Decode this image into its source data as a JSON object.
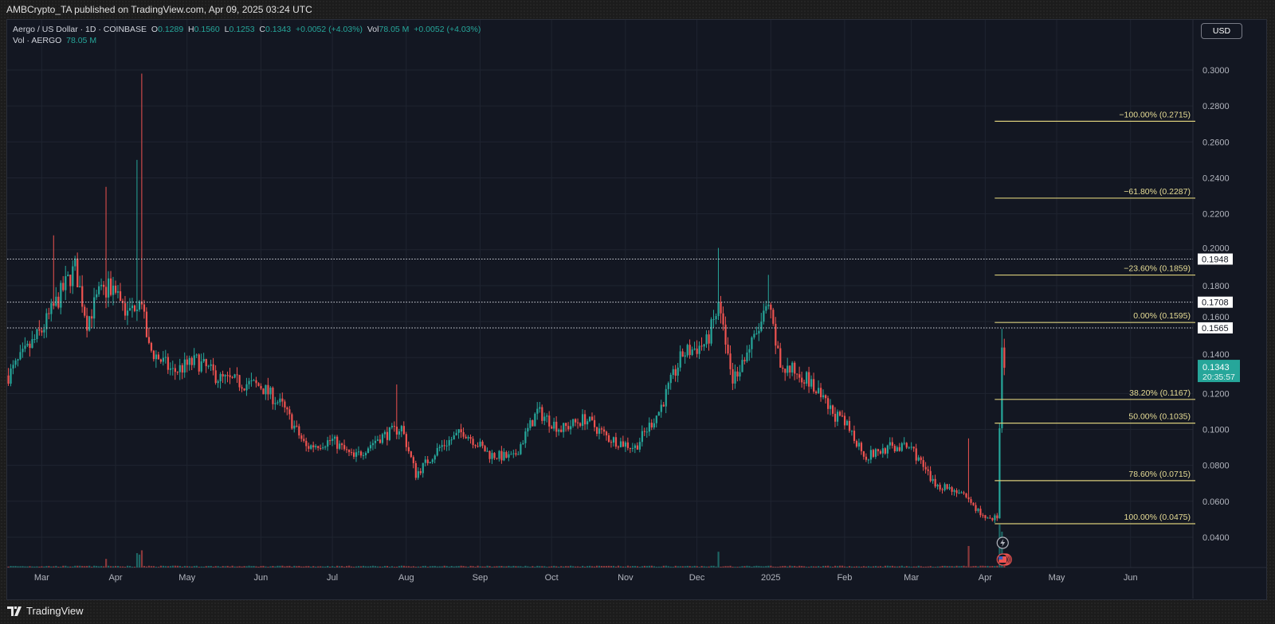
{
  "published": "AMBCrypto_TA published on TradingView.com, Apr 09, 2025 03:24 UTC",
  "legend": {
    "symbol": "Aergo / US Dollar · 1D · COINBASE",
    "o_label": "O",
    "o": "0.1289",
    "h_label": "H",
    "h": "0.1560",
    "l_label": "L",
    "l": "0.1253",
    "c_label": "C",
    "c": "0.1343",
    "change": "+0.0052 (+4.03%)",
    "vol_label": "Vol",
    "vol": "78.05 M",
    "vol_change": "+0.0052 (+4.03%)",
    "vol_series": "Vol · AERGO",
    "vol_series_value": "78.05 M"
  },
  "currency_button": "USD",
  "brand": "TradingView",
  "colors": {
    "up": "#26a69a",
    "down": "#ef5350",
    "fib": "#d8cc7a",
    "bg": "#131722",
    "grid": "#1f2430"
  },
  "chart_data": {
    "type": "candlestick",
    "symbol": "AERGO/USD",
    "interval": "1D",
    "ylim": [
      0.025,
      0.31
    ],
    "y_ticks": [
      "0.3000",
      "0.2800",
      "0.2600",
      "0.2400",
      "0.2200",
      "0.2000",
      "0.1800",
      "0.1600",
      "0.1400",
      "0.1200",
      "0.1000",
      "0.0800",
      "0.0600",
      "0.0400"
    ],
    "x_ticks": [
      {
        "label": "Mar",
        "date": "2024-03-01"
      },
      {
        "label": "Apr",
        "date": "2024-04-01"
      },
      {
        "label": "May",
        "date": "2024-05-01"
      },
      {
        "label": "Jun",
        "date": "2024-06-01"
      },
      {
        "label": "Jul",
        "date": "2024-07-01"
      },
      {
        "label": "Aug",
        "date": "2024-08-01"
      },
      {
        "label": "Sep",
        "date": "2024-09-01"
      },
      {
        "label": "Oct",
        "date": "2024-10-01"
      },
      {
        "label": "Nov",
        "date": "2024-11-01"
      },
      {
        "label": "Dec",
        "date": "2024-12-01"
      },
      {
        "label": "2025",
        "date": "2025-01-01"
      },
      {
        "label": "Feb",
        "date": "2025-02-01"
      },
      {
        "label": "Mar",
        "date": "2025-03-01"
      },
      {
        "label": "Apr",
        "date": "2025-04-01"
      },
      {
        "label": "May",
        "date": "2025-05-01"
      },
      {
        "label": "Jun",
        "date": "2025-06-01"
      }
    ],
    "close_anchors": [
      [
        "2024-02-16",
        0.13
      ],
      [
        "2024-03-01",
        0.155
      ],
      [
        "2024-03-10",
        0.178
      ],
      [
        "2024-03-15",
        0.19
      ],
      [
        "2024-03-20",
        0.16
      ],
      [
        "2024-03-25",
        0.175
      ],
      [
        "2024-04-01",
        0.18
      ],
      [
        "2024-04-06",
        0.163
      ],
      [
        "2024-04-11",
        0.175
      ],
      [
        "2024-04-15",
        0.145
      ],
      [
        "2024-04-25",
        0.132
      ],
      [
        "2024-05-05",
        0.138
      ],
      [
        "2024-05-15",
        0.128
      ],
      [
        "2024-06-01",
        0.124
      ],
      [
        "2024-06-10",
        0.113
      ],
      [
        "2024-06-20",
        0.09
      ],
      [
        "2024-07-01",
        0.094
      ],
      [
        "2024-07-10",
        0.084
      ],
      [
        "2024-07-20",
        0.095
      ],
      [
        "2024-07-30",
        0.101
      ],
      [
        "2024-08-05",
        0.075
      ],
      [
        "2024-08-15",
        0.09
      ],
      [
        "2024-08-25",
        0.099
      ],
      [
        "2024-09-05",
        0.086
      ],
      [
        "2024-09-15",
        0.084
      ],
      [
        "2024-09-25",
        0.11
      ],
      [
        "2024-10-05",
        0.1
      ],
      [
        "2024-10-15",
        0.106
      ],
      [
        "2024-10-25",
        0.095
      ],
      [
        "2024-11-05",
        0.09
      ],
      [
        "2024-11-15",
        0.11
      ],
      [
        "2024-11-25",
        0.142
      ],
      [
        "2024-12-05",
        0.148
      ],
      [
        "2024-12-10",
        0.168
      ],
      [
        "2024-12-16",
        0.128
      ],
      [
        "2024-12-25",
        0.15
      ],
      [
        "2024-12-31",
        0.168
      ],
      [
        "2025-01-05",
        0.135
      ],
      [
        "2025-01-15",
        0.13
      ],
      [
        "2025-01-25",
        0.112
      ],
      [
        "2025-02-03",
        0.1
      ],
      [
        "2025-02-10",
        0.085
      ],
      [
        "2025-02-20",
        0.09
      ],
      [
        "2025-03-01",
        0.09
      ],
      [
        "2025-03-10",
        0.07
      ],
      [
        "2025-03-20",
        0.066
      ],
      [
        "2025-04-01",
        0.051
      ],
      [
        "2025-04-06",
        0.051
      ],
      [
        "2025-04-07",
        0.1
      ],
      [
        "2025-04-08",
        0.15
      ],
      [
        "2025-04-09",
        0.1343
      ]
    ],
    "wick_spikes": [
      [
        "2024-03-06",
        0.208
      ],
      [
        "2024-03-28",
        0.235
      ],
      [
        "2024-04-10",
        0.25
      ],
      [
        "2024-04-12",
        0.298
      ],
      [
        "2024-07-28",
        0.125
      ],
      [
        "2024-12-10",
        0.201
      ],
      [
        "2024-12-31",
        0.186
      ],
      [
        "2025-03-25",
        0.095
      ],
      [
        "2025-04-08",
        0.156
      ]
    ],
    "volume_spikes": [
      [
        "2024-03-28",
        0.6
      ],
      [
        "2024-04-10",
        1.0
      ],
      [
        "2024-04-11",
        0.9
      ],
      [
        "2024-04-12",
        1.2
      ],
      [
        "2024-12-10",
        1.1
      ],
      [
        "2025-03-25",
        1.5
      ],
      [
        "2025-04-07",
        3.0
      ],
      [
        "2025-04-08",
        2.5
      ]
    ],
    "horizontal_levels": [
      {
        "price": 0.1948,
        "label": "0.1948"
      },
      {
        "price": 0.1708,
        "label": "0.1708"
      },
      {
        "price": 0.1565,
        "label": "0.1565"
      }
    ],
    "fibonacci": {
      "start_date": "2025-04-05",
      "levels": [
        {
          "price": 0.2715,
          "label": "−100.00% (0.2715)"
        },
        {
          "price": 0.2287,
          "label": "−61.80% (0.2287)"
        },
        {
          "price": 0.1859,
          "label": "−23.60% (0.1859)"
        },
        {
          "price": 0.1595,
          "label": "0.00% (0.1595)"
        },
        {
          "price": 0.1167,
          "label": "38.20% (0.1167)"
        },
        {
          "price": 0.1035,
          "label": "50.00% (0.1035)"
        },
        {
          "price": 0.0715,
          "label": "78.60% (0.0715)"
        },
        {
          "price": 0.0475,
          "label": "100.00% (0.0475)"
        }
      ]
    },
    "last_price": {
      "price": 0.1343,
      "label": "0.1343",
      "countdown": "20:35:57"
    }
  }
}
